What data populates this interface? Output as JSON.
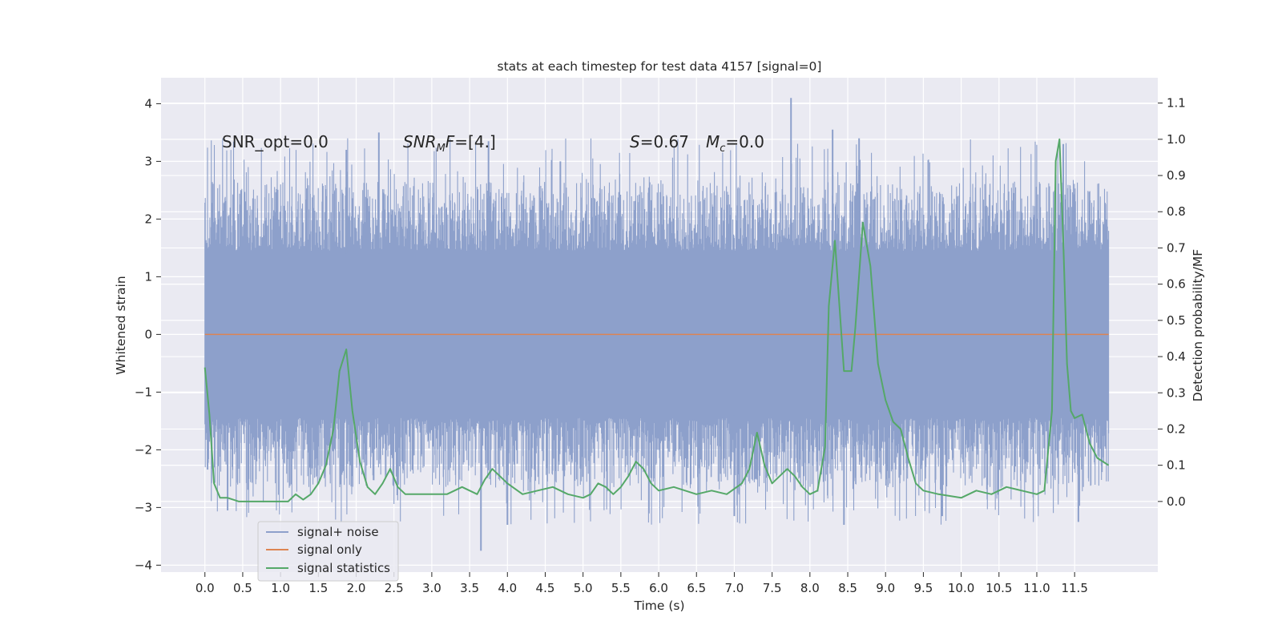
{
  "chart_data": {
    "type": "line",
    "title": "stats at each timestep for test data 4157 [signal=0]",
    "xlabel": "Time (s)",
    "ylabel": "Whitened strain",
    "y2label": "Detection probability/MF",
    "xlim": [
      -0.58,
      12.6
    ],
    "ylim": [
      -4.12,
      4.45
    ],
    "y2lim": [
      -0.195,
      1.17
    ],
    "xticks": [
      0.0,
      0.5,
      1.0,
      1.5,
      2.0,
      2.5,
      3.0,
      3.5,
      4.0,
      4.5,
      5.0,
      5.5,
      6.0,
      6.5,
      7.0,
      7.5,
      8.0,
      8.5,
      9.0,
      9.5,
      10.0,
      10.5,
      11.0,
      11.5
    ],
    "xtick_labels": [
      "0.0",
      "0.5",
      "1.0",
      "1.5",
      "2.0",
      "2.5",
      "3.0",
      "3.5",
      "4.0",
      "4.5",
      "5.0",
      "5.5",
      "6.0",
      "6.5",
      "7.0",
      "7.5",
      "8.0",
      "8.5",
      "9.0",
      "9.5",
      "10.0",
      "10.5",
      "11.0",
      "11.5"
    ],
    "yticks": [
      -4,
      -3,
      -2,
      -1,
      0,
      1,
      2,
      3,
      4
    ],
    "ytick_labels": [
      "−4",
      "−3",
      "−2",
      "−1",
      "0",
      "1",
      "2",
      "3",
      "4"
    ],
    "y2ticks": [
      0.0,
      0.1,
      0.2,
      0.3,
      0.4,
      0.5,
      0.6,
      0.7,
      0.8,
      0.9,
      1.0,
      1.1
    ],
    "y2tick_labels": [
      "0.0",
      "0.1",
      "0.2",
      "0.3",
      "0.4",
      "0.5",
      "0.6",
      "0.7",
      "0.8",
      "0.9",
      "1.0",
      "1.1"
    ],
    "grid": true,
    "legend_position": "lower-left",
    "noise": {
      "t_start": 0.0,
      "t_end": 11.95,
      "center": 0.0,
      "core_amplitude": 1.4,
      "max_abs": 4.1,
      "spike_peaks_up": [
        [
          1.87,
          3.2
        ],
        [
          2.3,
          3.5
        ],
        [
          3.75,
          3.35
        ],
        [
          4.7,
          3.0
        ],
        [
          7.75,
          4.1
        ],
        [
          8.3,
          3.55
        ],
        [
          8.65,
          3.4
        ],
        [
          11.35,
          3.3
        ]
      ],
      "spike_peaks_down": [
        [
          0.3,
          -3.05
        ],
        [
          3.65,
          -3.75
        ],
        [
          4.0,
          -3.3
        ],
        [
          7.0,
          -3.15
        ],
        [
          8.45,
          -3.3
        ],
        [
          9.75,
          -3.15
        ],
        [
          11.55,
          -3.25
        ]
      ]
    },
    "series": [
      {
        "name": "signal+ noise",
        "axis": "left",
        "color": "#8da0cb",
        "representation": "dense noise band"
      },
      {
        "name": "signal only",
        "axis": "left",
        "color": "#dd8452",
        "x": [
          0.0,
          11.95
        ],
        "y": [
          0.0,
          0.0
        ]
      },
      {
        "name": "signal statistics",
        "axis": "right",
        "color": "#55a868",
        "x": [
          0.0,
          0.06,
          0.12,
          0.2,
          0.3,
          0.45,
          0.6,
          0.8,
          1.0,
          1.1,
          1.2,
          1.3,
          1.4,
          1.5,
          1.6,
          1.7,
          1.78,
          1.87,
          1.95,
          2.05,
          2.15,
          2.25,
          2.35,
          2.45,
          2.55,
          2.65,
          2.75,
          2.85,
          3.0,
          3.2,
          3.4,
          3.5,
          3.6,
          3.7,
          3.8,
          3.9,
          4.0,
          4.2,
          4.4,
          4.6,
          4.8,
          5.0,
          5.1,
          5.2,
          5.3,
          5.4,
          5.5,
          5.6,
          5.7,
          5.8,
          5.9,
          6.0,
          6.2,
          6.5,
          6.7,
          6.9,
          7.1,
          7.2,
          7.3,
          7.4,
          7.5,
          7.6,
          7.7,
          7.8,
          7.9,
          8.0,
          8.1,
          8.2,
          8.25,
          8.33,
          8.45,
          8.55,
          8.6,
          8.7,
          8.8,
          8.9,
          9.0,
          9.1,
          9.2,
          9.3,
          9.4,
          9.5,
          9.7,
          10.0,
          10.2,
          10.4,
          10.6,
          10.8,
          11.0,
          11.1,
          11.2,
          11.25,
          11.3,
          11.35,
          11.4,
          11.45,
          11.5,
          11.6,
          11.7,
          11.8,
          11.95
        ],
        "y": [
          0.37,
          0.24,
          0.05,
          0.01,
          0.01,
          0.0,
          0.0,
          0.0,
          0.0,
          0.0,
          0.02,
          0.005,
          0.02,
          0.05,
          0.1,
          0.2,
          0.36,
          0.42,
          0.25,
          0.11,
          0.04,
          0.02,
          0.05,
          0.09,
          0.04,
          0.02,
          0.02,
          0.02,
          0.02,
          0.02,
          0.04,
          0.03,
          0.02,
          0.06,
          0.09,
          0.07,
          0.05,
          0.02,
          0.03,
          0.04,
          0.02,
          0.01,
          0.02,
          0.05,
          0.04,
          0.02,
          0.04,
          0.07,
          0.11,
          0.09,
          0.05,
          0.03,
          0.04,
          0.02,
          0.03,
          0.02,
          0.05,
          0.09,
          0.19,
          0.1,
          0.05,
          0.07,
          0.09,
          0.07,
          0.04,
          0.02,
          0.03,
          0.15,
          0.54,
          0.72,
          0.36,
          0.36,
          0.48,
          0.77,
          0.65,
          0.38,
          0.28,
          0.22,
          0.2,
          0.12,
          0.05,
          0.03,
          0.02,
          0.01,
          0.03,
          0.02,
          0.04,
          0.03,
          0.02,
          0.03,
          0.25,
          0.94,
          1.0,
          0.72,
          0.38,
          0.25,
          0.23,
          0.24,
          0.16,
          0.12,
          0.1
        ]
      }
    ],
    "annotations": [
      {
        "id": "snr-opt",
        "text": "SNR_opt=0.0",
        "style": "normal"
      },
      {
        "id": "snr-mf-main",
        "text": "SNR",
        "style": "italic"
      },
      {
        "id": "snr-mf-sub",
        "text": "M",
        "style": "italic-subscript"
      },
      {
        "id": "snr-mf-var",
        "text": "F",
        "style": "italic"
      },
      {
        "id": "snr-mf-val",
        "text": "=[4.]",
        "style": "normal"
      },
      {
        "id": "s-var",
        "text": "S",
        "style": "italic"
      },
      {
        "id": "s-val",
        "text": "=0.67",
        "style": "normal"
      },
      {
        "id": "mc-var",
        "text": "M",
        "style": "italic"
      },
      {
        "id": "mc-sub",
        "text": "c",
        "style": "italic-subscript"
      },
      {
        "id": "mc-val",
        "text": "=0.0",
        "style": "normal"
      }
    ]
  },
  "colors": {
    "plot_background": "#eaeaf2",
    "grid": "#ffffff",
    "noise": "#8da0cb",
    "signal_only": "#dd8452",
    "statistics": "#55a868",
    "text": "#262626"
  }
}
